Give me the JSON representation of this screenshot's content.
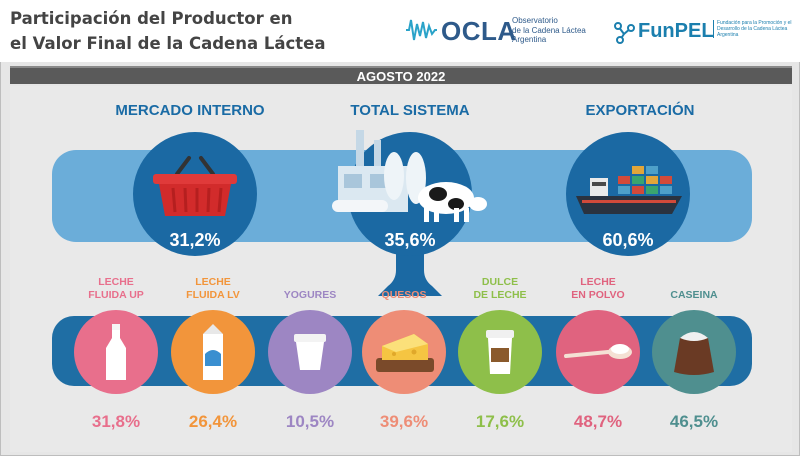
{
  "header": {
    "title_line1": "Participación del Productor en",
    "title_line2": "el Valor Final de la Cadena Láctea",
    "ocla_name": "OCLA",
    "ocla_sub1": "Observatorio",
    "ocla_sub2": "de la Cadena Láctea",
    "ocla_sub3": "Argentina",
    "funpel_name": "FunPEL",
    "funpel_sub": "Fundación para la Promoción y el Desarrollo de la Cadena Láctea Argentina"
  },
  "period": "AGOSTO 2022",
  "segments": [
    {
      "label": "MERCADO INTERNO",
      "value": "31,2%",
      "icon": "basket-icon"
    },
    {
      "label": "TOTAL SISTEMA",
      "value": "35,6%",
      "icon": "factory-cow-icon"
    },
    {
      "label": "EXPORTACIÓN",
      "value": "60,6%",
      "icon": "cargo-ship-icon"
    }
  ],
  "products": [
    {
      "label1": "LECHE",
      "label2": "FLUIDA UP",
      "value": "31,8%",
      "color": "#e86f8c",
      "icon": "milk-bottle-icon"
    },
    {
      "label1": "LECHE",
      "label2": "FLUIDA LV",
      "value": "26,4%",
      "color": "#f2953b",
      "icon": "milk-carton-icon"
    },
    {
      "label1": "YOGURES",
      "label2": "",
      "value": "10,5%",
      "color": "#9d86c3",
      "icon": "yogurt-cup-icon"
    },
    {
      "label1": "QUESOS",
      "label2": "",
      "value": "39,6%",
      "color": "#ee8d76",
      "icon": "cheese-icon"
    },
    {
      "label1": "DULCE",
      "label2": "DE LECHE",
      "value": "17,6%",
      "color": "#8ebf4a",
      "icon": "dulce-jar-icon"
    },
    {
      "label1": "LECHE",
      "label2": "EN POLVO",
      "value": "48,7%",
      "color": "#e0637f",
      "icon": "powder-spoon-icon"
    },
    {
      "label1": "CASEINA",
      "label2": "",
      "value": "46,5%",
      "color": "#4f8f8f",
      "icon": "casein-sack-icon"
    }
  ]
}
